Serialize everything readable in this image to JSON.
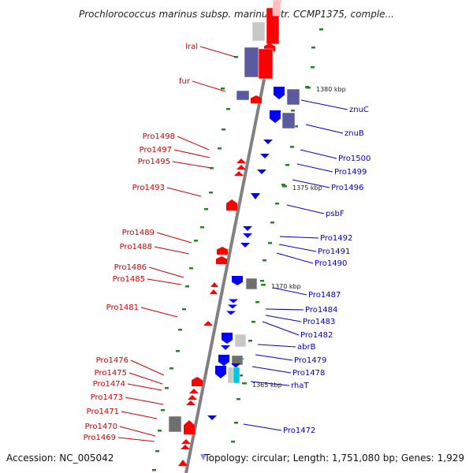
{
  "title": "Prochlorococcus marinus subsp. marinus str. CCMP1375, comple...",
  "footer": {
    "accession": "Accession: NC_005042",
    "topology": "Topology: circular; Length: 1,751,080 bp; Genes: 1,929"
  },
  "colors": {
    "forward": "#ff0000",
    "reverse": "#0000ff",
    "forward_dark": "#5a5aa0",
    "backbone": "#808080",
    "tick": "#1a8a1a",
    "label_forward": "#cc0000",
    "label_reverse": "#0000cc"
  },
  "scale_labels": [
    "1380 kbp",
    "1375 kbp",
    "1370 kbp",
    "1365 kbp"
  ],
  "left_genes": [
    "lral",
    "fur",
    "Pro1498",
    "Pro1497",
    "Pro1495",
    "Pro1493",
    "Pro1489",
    "Pro1488",
    "Pro1486",
    "Pro1485",
    "Pro1481",
    "Pro1476",
    "Pro1475",
    "Pro1474",
    "Pro1473",
    "Pro1471",
    "Pro1470",
    "Pro1469"
  ],
  "right_genes": [
    "znuC",
    "znuB",
    "Pro1500",
    "Pro1499",
    "Pro1496",
    "psbF",
    "Pro1492",
    "Pro1491",
    "Pro1490",
    "Pro1487",
    "Pro1484",
    "Pro1483",
    "Pro1482",
    "abrB",
    "Pro1479",
    "Pro1478",
    "rhaT",
    "Pro1472"
  ]
}
